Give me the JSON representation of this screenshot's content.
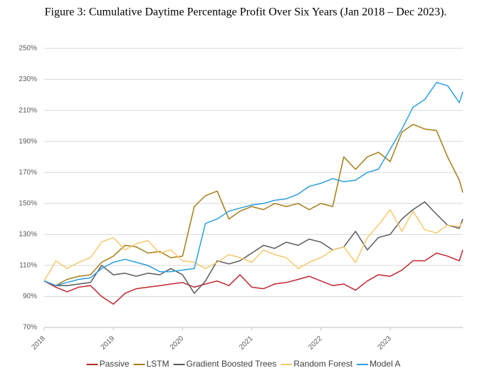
{
  "chart_data": {
    "type": "line",
    "title": "Figure 3: Cumulative Daytime Percentage Profit Over Six Years (Jan 2018 – Dec 2023).",
    "x": [
      2018,
      2018.17,
      2018.33,
      2018.5,
      2018.67,
      2018.83,
      2019,
      2019.17,
      2019.33,
      2019.5,
      2019.67,
      2019.83,
      2020,
      2020.17,
      2020.33,
      2020.5,
      2020.67,
      2020.83,
      2021,
      2021.17,
      2021.33,
      2021.5,
      2021.67,
      2021.83,
      2022,
      2022.17,
      2022.33,
      2022.5,
      2022.67,
      2022.83,
      2023,
      2023.17,
      2023.33,
      2023.5,
      2023.67,
      2023.83,
      2024,
      2024.05
    ],
    "xlim": [
      2018,
      2024.05
    ],
    "xticks": [
      2018,
      2019,
      2020,
      2021,
      2022,
      2023
    ],
    "ylim": [
      70,
      250
    ],
    "yticks": [
      {
        "value": 70,
        "label": "70%"
      },
      {
        "value": 90,
        "label": "90%"
      },
      {
        "value": 110,
        "label": "110%"
      },
      {
        "value": 130,
        "label": "130%"
      },
      {
        "value": 150,
        "label": "150%"
      },
      {
        "value": 170,
        "label": "170%"
      },
      {
        "value": 190,
        "label": "190%"
      },
      {
        "value": 210,
        "label": "210%"
      },
      {
        "value": 230,
        "label": "230%"
      },
      {
        "value": 250,
        "label": "250%"
      }
    ],
    "grid": true,
    "legend": "bottom",
    "series": [
      {
        "name": "Passive",
        "color": "#c0272d",
        "values": [
          100,
          96,
          93,
          96,
          97,
          90,
          85,
          92,
          95,
          96,
          97,
          98,
          99,
          96,
          98,
          100,
          97,
          104,
          96,
          95,
          98,
          99,
          101,
          103,
          100,
          97,
          98,
          94,
          100,
          104,
          103,
          107,
          113,
          113,
          118,
          116,
          113,
          120
        ]
      },
      {
        "name": "LSTM",
        "color": "#a67c18",
        "values": [
          100,
          97,
          101,
          103,
          104,
          112,
          116,
          123,
          122,
          118,
          119,
          115,
          116,
          148,
          155,
          158,
          140,
          145,
          148,
          146,
          150,
          148,
          150,
          146,
          150,
          148,
          180,
          172,
          180,
          183,
          177,
          196,
          201,
          198,
          197,
          180,
          165,
          157
        ]
      },
      {
        "name": "Gradient Boosted Trees",
        "color": "#5a5a5a",
        "values": [
          100,
          97,
          97,
          98,
          99,
          110,
          104,
          105,
          103,
          105,
          104,
          108,
          104,
          92,
          100,
          113,
          111,
          113,
          118,
          123,
          121,
          125,
          123,
          127,
          125,
          120,
          122,
          132,
          120,
          128,
          130,
          140,
          146,
          151,
          143,
          136,
          134,
          140
        ]
      },
      {
        "name": "Random Forest",
        "color": "#f6c96c",
        "values": [
          100,
          113,
          108,
          112,
          115,
          125,
          128,
          120,
          124,
          126,
          118,
          120,
          113,
          112,
          108,
          112,
          117,
          115,
          112,
          120,
          117,
          115,
          108,
          112,
          115,
          120,
          122,
          112,
          128,
          136,
          146,
          132,
          145,
          133,
          131,
          136,
          135,
          138
        ]
      },
      {
        "name": "Model A",
        "color": "#2b9fe0",
        "values": [
          100,
          97,
          99,
          101,
          102,
          108,
          112,
          114,
          112,
          110,
          106,
          106,
          107,
          108,
          137,
          140,
          145,
          147,
          149,
          150,
          152,
          153,
          156,
          161,
          163,
          166,
          164,
          165,
          170,
          172,
          185,
          198,
          212,
          217,
          228,
          226,
          215,
          222
        ]
      }
    ]
  }
}
